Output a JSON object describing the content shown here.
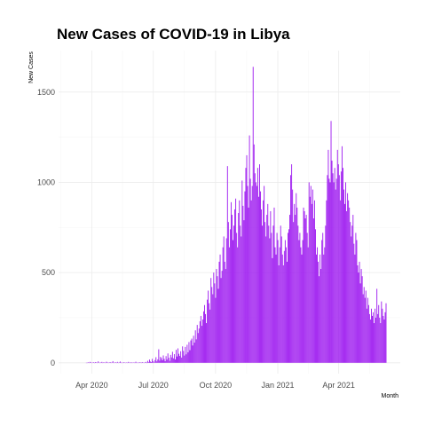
{
  "chart_data": {
    "type": "bar",
    "title": "New Cases of COVID-19 in Libya",
    "xlabel": "Month",
    "ylabel": "New Cases",
    "x_start": "2020-03-24",
    "x_end": "2021-06-10",
    "xlim": [
      "2020-02-12",
      "2021-07-01"
    ],
    "ylim": [
      -60,
      1730
    ],
    "y_ticks": [
      0,
      500,
      1000,
      1500
    ],
    "x_ticks": [
      {
        "date": "2020-04-01",
        "label": "Apr 2020"
      },
      {
        "date": "2020-07-01",
        "label": "Jul 2020"
      },
      {
        "date": "2020-10-01",
        "label": "Oct 2020"
      },
      {
        "date": "2021-01-01",
        "label": "Jan 2021"
      },
      {
        "date": "2021-04-01",
        "label": "Apr 2021"
      }
    ],
    "grid": true,
    "bar_color": "#a020f0",
    "values": [
      0,
      0,
      3,
      0,
      5,
      2,
      0,
      1,
      3,
      0,
      4,
      2,
      0,
      8,
      1,
      0,
      2,
      5,
      0,
      3,
      1,
      0,
      6,
      2,
      0,
      1,
      4,
      0,
      2,
      9,
      0,
      1,
      3,
      0,
      5,
      0,
      2,
      7,
      0,
      1,
      0,
      3,
      1,
      0,
      2,
      0,
      5,
      1,
      0,
      3,
      0,
      1,
      2,
      0,
      6,
      0,
      1,
      0,
      3,
      2,
      0,
      4,
      1,
      0,
      2,
      5,
      0,
      11,
      3,
      18,
      7,
      4,
      22,
      9,
      2,
      15,
      31,
      8,
      19,
      75,
      12,
      33,
      26,
      14,
      41,
      22,
      9,
      37,
      18,
      52,
      28,
      11,
      44,
      30,
      61,
      25,
      48,
      19,
      72,
      35,
      80,
      50,
      38,
      64,
      29,
      91,
      66,
      40,
      88,
      47,
      100,
      58,
      115,
      70,
      124,
      134,
      96,
      150,
      112,
      180,
      130,
      210,
      165,
      190,
      230,
      260,
      205,
      240,
      285,
      320,
      270,
      220,
      350,
      400,
      330,
      295,
      470,
      420,
      380,
      500,
      440,
      360,
      520,
      480,
      410,
      560,
      600,
      470,
      510,
      640,
      700,
      560,
      520,
      690,
      1090,
      780,
      640,
      740,
      890,
      820,
      680,
      760,
      850,
      910,
      720,
      640,
      830,
      900,
      760,
      700,
      1010,
      870,
      790,
      950,
      1080,
      1150,
      980,
      860,
      1260,
      1020,
      900,
      980,
      1640,
      1210,
      1050,
      1000,
      980,
      1080,
      920,
      1100,
      950,
      850,
      760,
      900,
      980,
      780,
      700,
      820,
      880,
      760,
      690,
      840,
      720,
      580,
      760,
      860,
      640,
      600,
      720,
      680,
      540,
      640,
      760,
      700,
      600,
      540,
      620,
      680,
      640,
      560,
      720,
      740,
      820,
      1040,
      1100,
      960,
      780,
      880,
      820,
      940,
      860,
      760,
      680,
      720,
      640,
      600,
      680,
      860,
      840,
      800,
      820,
      720,
      640,
      1000,
      920,
      980,
      880,
      960,
      800,
      900,
      740,
      600,
      640,
      560,
      480,
      600,
      520,
      680,
      720,
      600,
      640,
      760,
      900,
      1040,
      1180,
      1020,
      1000,
      1340,
      1120,
      1050,
      1000,
      1080,
      960,
      1020,
      1180,
      1100,
      1040,
      900,
      1060,
      1200,
      1080,
      960,
      880,
      1000,
      840,
      940,
      900,
      860,
      780,
      700,
      760,
      820,
      660,
      600,
      720,
      680,
      540,
      500,
      560,
      440,
      520,
      480,
      380,
      420,
      360,
      400,
      300,
      360,
      320,
      270,
      240,
      300,
      260,
      280,
      220,
      300,
      250,
      410,
      270,
      320,
      250,
      220,
      340,
      300,
      260,
      240,
      280,
      330
    ]
  }
}
